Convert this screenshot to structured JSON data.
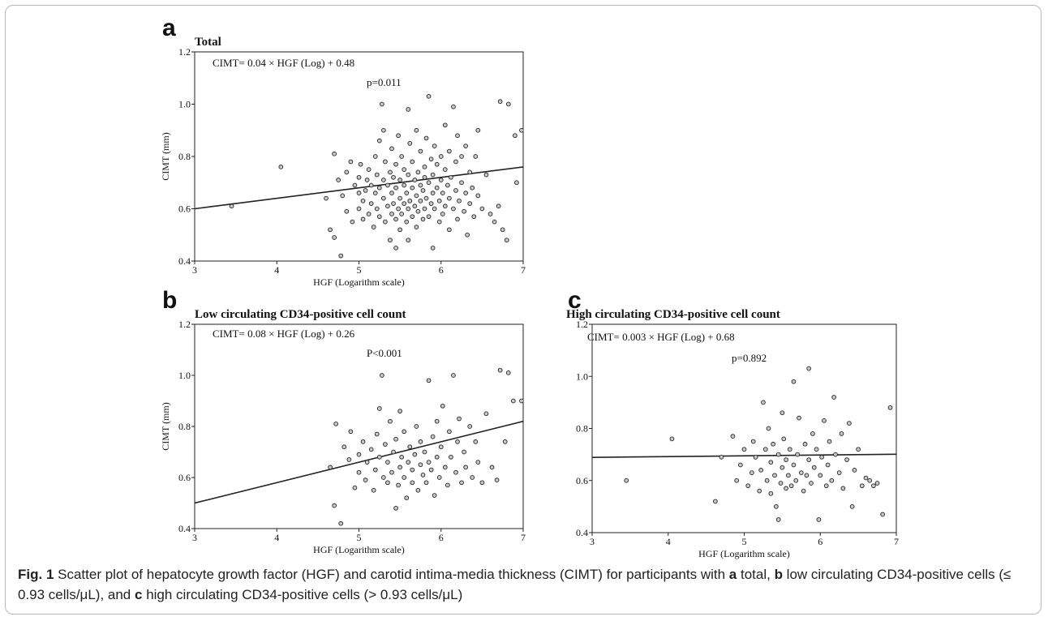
{
  "figure": {
    "caption": {
      "fig_label": "Fig. 1",
      "parts": [
        {
          "text": " Scatter plot of hepatocyte growth factor (HGF) and carotid intima-media thickness (CIMT) for participants with ",
          "bold": false
        },
        {
          "text": "a",
          "bold": true
        },
        {
          "text": " total, ",
          "bold": false
        },
        {
          "text": "b",
          "bold": true
        },
        {
          "text": " low circulating CD34-positive cells (≤ 0.93 cells/μL), and ",
          "bold": false
        },
        {
          "text": "c",
          "bold": true
        },
        {
          "text": " high circulating CD34-positive cells (> 0.93 cells/μL)",
          "bold": false
        }
      ]
    }
  },
  "chart_data": [
    {
      "panel": "a",
      "type": "scatter",
      "title": "Total",
      "xlabel": "HGF  (Logarithm  scale)",
      "ylabel": "CIMT  (mm)",
      "xlim": [
        3,
        7
      ],
      "ylim": [
        0.4,
        1.2
      ],
      "xticks": [
        3,
        4,
        5,
        6,
        7
      ],
      "yticks": [
        0.4,
        0.6,
        0.8,
        1.0,
        1.2
      ],
      "ytick_labels": [
        "0.4",
        "0.6",
        "0.8",
        "1.0",
        "1.2"
      ],
      "equation": "CIMT= 0.04 × HGF (Log) + 0.48",
      "pvalue": "p=0.011",
      "regression": {
        "slope": 0.04,
        "intercept": 0.48
      },
      "grid": false,
      "points": [
        [
          3.45,
          0.61
        ],
        [
          4.05,
          0.76
        ],
        [
          4.6,
          0.64
        ],
        [
          4.65,
          0.52
        ],
        [
          4.7,
          0.49
        ],
        [
          4.7,
          0.81
        ],
        [
          4.75,
          0.71
        ],
        [
          4.78,
          0.42
        ],
        [
          4.8,
          0.65
        ],
        [
          4.85,
          0.59
        ],
        [
          4.85,
          0.74
        ],
        [
          4.9,
          0.78
        ],
        [
          4.92,
          0.55
        ],
        [
          4.95,
          0.69
        ],
        [
          5.0,
          0.6
        ],
        [
          5.0,
          0.66
        ],
        [
          5.0,
          0.72
        ],
        [
          5.02,
          0.77
        ],
        [
          5.05,
          0.56
        ],
        [
          5.05,
          0.63
        ],
        [
          5.08,
          0.67
        ],
        [
          5.1,
          0.71
        ],
        [
          5.12,
          0.58
        ],
        [
          5.12,
          0.75
        ],
        [
          5.15,
          0.62
        ],
        [
          5.15,
          0.69
        ],
        [
          5.18,
          0.53
        ],
        [
          5.2,
          0.66
        ],
        [
          5.2,
          0.8
        ],
        [
          5.22,
          0.6
        ],
        [
          5.22,
          0.73
        ],
        [
          5.25,
          0.57
        ],
        [
          5.25,
          0.68
        ],
        [
          5.25,
          0.86
        ],
        [
          5.28,
          1.0
        ],
        [
          5.3,
          0.64
        ],
        [
          5.3,
          0.71
        ],
        [
          5.3,
          0.9
        ],
        [
          5.32,
          0.55
        ],
        [
          5.32,
          0.78
        ],
        [
          5.35,
          0.61
        ],
        [
          5.35,
          0.69
        ],
        [
          5.38,
          0.48
        ],
        [
          5.38,
          0.74
        ],
        [
          5.4,
          0.58
        ],
        [
          5.4,
          0.66
        ],
        [
          5.4,
          0.83
        ],
        [
          5.42,
          0.62
        ],
        [
          5.42,
          0.72
        ],
        [
          5.45,
          0.45
        ],
        [
          5.45,
          0.56
        ],
        [
          5.45,
          0.68
        ],
        [
          5.45,
          0.77
        ],
        [
          5.48,
          0.6
        ],
        [
          5.48,
          0.88
        ],
        [
          5.5,
          0.52
        ],
        [
          5.5,
          0.64
        ],
        [
          5.5,
          0.71
        ],
        [
          5.52,
          0.58
        ],
        [
          5.52,
          0.8
        ],
        [
          5.55,
          0.62
        ],
        [
          5.55,
          0.69
        ],
        [
          5.55,
          0.75
        ],
        [
          5.58,
          0.55
        ],
        [
          5.58,
          0.66
        ],
        [
          5.6,
          0.48
        ],
        [
          5.6,
          0.6
        ],
        [
          5.6,
          0.73
        ],
        [
          5.6,
          0.98
        ],
        [
          5.62,
          0.63
        ],
        [
          5.62,
          0.85
        ],
        [
          5.65,
          0.57
        ],
        [
          5.65,
          0.68
        ],
        [
          5.65,
          0.78
        ],
        [
          5.68,
          0.61
        ],
        [
          5.68,
          0.71
        ],
        [
          5.7,
          0.53
        ],
        [
          5.7,
          0.65
        ],
        [
          5.7,
          0.9
        ],
        [
          5.72,
          0.59
        ],
        [
          5.72,
          0.74
        ],
        [
          5.75,
          0.63
        ],
        [
          5.75,
          0.69
        ],
        [
          5.75,
          0.82
        ],
        [
          5.78,
          0.56
        ],
        [
          5.78,
          0.67
        ],
        [
          5.8,
          0.6
        ],
        [
          5.8,
          0.72
        ],
        [
          5.8,
          0.76
        ],
        [
          5.82,
          0.64
        ],
        [
          5.82,
          0.87
        ],
        [
          5.85,
          0.57
        ],
        [
          5.85,
          0.7
        ],
        [
          5.85,
          1.03
        ],
        [
          5.88,
          0.62
        ],
        [
          5.88,
          0.79
        ],
        [
          5.9,
          0.45
        ],
        [
          5.9,
          0.66
        ],
        [
          5.9,
          0.73
        ],
        [
          5.92,
          0.6
        ],
        [
          5.92,
          0.84
        ],
        [
          5.95,
          0.68
        ],
        [
          5.95,
          0.77
        ],
        [
          5.98,
          0.55
        ],
        [
          5.98,
          0.63
        ],
        [
          6.0,
          0.71
        ],
        [
          6.0,
          0.8
        ],
        [
          6.02,
          0.58
        ],
        [
          6.02,
          0.66
        ],
        [
          6.05,
          0.61
        ],
        [
          6.05,
          0.75
        ],
        [
          6.05,
          0.92
        ],
        [
          6.08,
          0.69
        ],
        [
          6.1,
          0.52
        ],
        [
          6.1,
          0.64
        ],
        [
          6.1,
          0.82
        ],
        [
          6.12,
          0.72
        ],
        [
          6.15,
          0.6
        ],
        [
          6.15,
          0.99
        ],
        [
          6.18,
          0.67
        ],
        [
          6.18,
          0.78
        ],
        [
          6.2,
          0.56
        ],
        [
          6.2,
          0.88
        ],
        [
          6.22,
          0.63
        ],
        [
          6.25,
          0.7
        ],
        [
          6.25,
          0.8
        ],
        [
          6.28,
          0.59
        ],
        [
          6.3,
          0.66
        ],
        [
          6.3,
          0.84
        ],
        [
          6.32,
          0.5
        ],
        [
          6.35,
          0.62
        ],
        [
          6.35,
          0.74
        ],
        [
          6.38,
          0.68
        ],
        [
          6.4,
          0.57
        ],
        [
          6.42,
          0.8
        ],
        [
          6.45,
          0.65
        ],
        [
          6.45,
          0.9
        ],
        [
          6.5,
          0.6
        ],
        [
          6.55,
          0.73
        ],
        [
          6.6,
          0.58
        ],
        [
          6.65,
          0.55
        ],
        [
          6.7,
          0.61
        ],
        [
          6.72,
          1.01
        ],
        [
          6.75,
          0.52
        ],
        [
          6.8,
          0.48
        ],
        [
          6.82,
          1.0
        ],
        [
          6.9,
          0.88
        ],
        [
          6.92,
          0.7
        ],
        [
          6.98,
          0.9
        ]
      ]
    },
    {
      "panel": "b",
      "type": "scatter",
      "title": "Low circulating CD34-positive cell count",
      "xlabel": "HGF  (Logarithm  scale)",
      "ylabel": "CIMT  (mm)",
      "xlim": [
        3,
        7
      ],
      "ylim": [
        0.4,
        1.2
      ],
      "xticks": [
        3,
        4,
        5,
        6,
        7
      ],
      "yticks": [
        0.4,
        0.6,
        0.8,
        1.0,
        1.2
      ],
      "ytick_labels": [
        "0.4",
        "0.6",
        "0.8",
        "1.0",
        "1.2"
      ],
      "equation": "CIMT= 0.08 × HGF (Log) + 0.26",
      "pvalue": "P<0.001",
      "regression": {
        "slope": 0.08,
        "intercept": 0.26
      },
      "grid": false,
      "points": [
        [
          4.65,
          0.64
        ],
        [
          4.7,
          0.49
        ],
        [
          4.72,
          0.81
        ],
        [
          4.78,
          0.42
        ],
        [
          4.82,
          0.72
        ],
        [
          4.88,
          0.67
        ],
        [
          4.9,
          0.78
        ],
        [
          4.95,
          0.56
        ],
        [
          5.0,
          0.62
        ],
        [
          5.0,
          0.69
        ],
        [
          5.05,
          0.74
        ],
        [
          5.08,
          0.59
        ],
        [
          5.1,
          0.66
        ],
        [
          5.15,
          0.71
        ],
        [
          5.18,
          0.55
        ],
        [
          5.2,
          0.63
        ],
        [
          5.22,
          0.77
        ],
        [
          5.25,
          0.68
        ],
        [
          5.25,
          0.87
        ],
        [
          5.28,
          1.0
        ],
        [
          5.3,
          0.6
        ],
        [
          5.32,
          0.73
        ],
        [
          5.35,
          0.58
        ],
        [
          5.35,
          0.66
        ],
        [
          5.38,
          0.82
        ],
        [
          5.4,
          0.62
        ],
        [
          5.42,
          0.7
        ],
        [
          5.45,
          0.48
        ],
        [
          5.45,
          0.75
        ],
        [
          5.48,
          0.57
        ],
        [
          5.5,
          0.64
        ],
        [
          5.5,
          0.86
        ],
        [
          5.52,
          0.68
        ],
        [
          5.55,
          0.6
        ],
        [
          5.55,
          0.78
        ],
        [
          5.58,
          0.52
        ],
        [
          5.6,
          0.66
        ],
        [
          5.62,
          0.72
        ],
        [
          5.65,
          0.58
        ],
        [
          5.65,
          0.63
        ],
        [
          5.68,
          0.69
        ],
        [
          5.7,
          0.8
        ],
        [
          5.72,
          0.55
        ],
        [
          5.75,
          0.65
        ],
        [
          5.75,
          0.74
        ],
        [
          5.78,
          0.61
        ],
        [
          5.8,
          0.7
        ],
        [
          5.82,
          0.58
        ],
        [
          5.85,
          0.98
        ],
        [
          5.85,
          0.66
        ],
        [
          5.88,
          0.63
        ],
        [
          5.9,
          0.76
        ],
        [
          5.92,
          0.53
        ],
        [
          5.95,
          0.68
        ],
        [
          5.95,
          0.82
        ],
        [
          5.98,
          0.6
        ],
        [
          6.0,
          0.72
        ],
        [
          6.02,
          0.88
        ],
        [
          6.05,
          0.64
        ],
        [
          6.08,
          0.57
        ],
        [
          6.1,
          0.78
        ],
        [
          6.12,
          0.68
        ],
        [
          6.15,
          1.0
        ],
        [
          6.18,
          0.62
        ],
        [
          6.2,
          0.74
        ],
        [
          6.22,
          0.83
        ],
        [
          6.25,
          0.58
        ],
        [
          6.28,
          0.7
        ],
        [
          6.3,
          0.64
        ],
        [
          6.35,
          0.8
        ],
        [
          6.38,
          0.6
        ],
        [
          6.42,
          0.74
        ],
        [
          6.45,
          0.66
        ],
        [
          6.5,
          0.58
        ],
        [
          6.55,
          0.85
        ],
        [
          6.62,
          0.64
        ],
        [
          6.68,
          0.59
        ],
        [
          6.72,
          1.02
        ],
        [
          6.78,
          0.74
        ],
        [
          6.82,
          1.01
        ],
        [
          6.88,
          0.9
        ],
        [
          6.98,
          0.9
        ]
      ]
    },
    {
      "panel": "c",
      "type": "scatter",
      "title": "High circulating CD34-positive cell count",
      "xlabel": "HGF  (Logarithm  scale)",
      "ylabel": "",
      "xlim": [
        3,
        7
      ],
      "ylim": [
        0.4,
        1.2
      ],
      "xticks": [
        3,
        4,
        5,
        6,
        7
      ],
      "yticks": [
        0.4,
        0.6,
        0.8,
        1.0,
        1.2
      ],
      "ytick_labels": [
        "0.4",
        "0.6",
        "0.8",
        "1.0",
        "1.2"
      ],
      "equation": "CIMT= 0.003 × HGF (Log) + 0.68",
      "pvalue": "p=0.892",
      "regression": {
        "slope": 0.003,
        "intercept": 0.68
      },
      "grid": false,
      "points": [
        [
          3.45,
          0.6
        ],
        [
          4.05,
          0.76
        ],
        [
          4.62,
          0.52
        ],
        [
          4.7,
          0.69
        ],
        [
          4.85,
          0.77
        ],
        [
          4.9,
          0.6
        ],
        [
          4.95,
          0.66
        ],
        [
          5.0,
          0.72
        ],
        [
          5.05,
          0.58
        ],
        [
          5.1,
          0.63
        ],
        [
          5.12,
          0.75
        ],
        [
          5.15,
          0.69
        ],
        [
          5.2,
          0.56
        ],
        [
          5.22,
          0.64
        ],
        [
          5.25,
          0.9
        ],
        [
          5.28,
          0.72
        ],
        [
          5.3,
          0.6
        ],
        [
          5.32,
          0.8
        ],
        [
          5.35,
          0.55
        ],
        [
          5.35,
          0.67
        ],
        [
          5.38,
          0.74
        ],
        [
          5.4,
          0.62
        ],
        [
          5.42,
          0.5
        ],
        [
          5.45,
          0.45
        ],
        [
          5.45,
          0.7
        ],
        [
          5.48,
          0.59
        ],
        [
          5.5,
          0.65
        ],
        [
          5.5,
          0.86
        ],
        [
          5.52,
          0.76
        ],
        [
          5.55,
          0.57
        ],
        [
          5.55,
          0.68
        ],
        [
          5.58,
          0.62
        ],
        [
          5.6,
          0.72
        ],
        [
          5.62,
          0.58
        ],
        [
          5.65,
          0.98
        ],
        [
          5.65,
          0.66
        ],
        [
          5.68,
          0.6
        ],
        [
          5.7,
          0.7
        ],
        [
          5.72,
          0.84
        ],
        [
          5.75,
          0.63
        ],
        [
          5.78,
          0.56
        ],
        [
          5.8,
          0.74
        ],
        [
          5.82,
          0.62
        ],
        [
          5.85,
          0.68
        ],
        [
          5.85,
          1.03
        ],
        [
          5.88,
          0.59
        ],
        [
          5.9,
          0.78
        ],
        [
          5.92,
          0.65
        ],
        [
          5.95,
          0.72
        ],
        [
          5.98,
          0.45
        ],
        [
          6.0,
          0.62
        ],
        [
          6.02,
          0.69
        ],
        [
          6.05,
          0.83
        ],
        [
          6.08,
          0.58
        ],
        [
          6.1,
          0.66
        ],
        [
          6.12,
          0.75
        ],
        [
          6.15,
          0.6
        ],
        [
          6.18,
          0.92
        ],
        [
          6.2,
          0.7
        ],
        [
          6.25,
          0.63
        ],
        [
          6.28,
          0.78
        ],
        [
          6.3,
          0.57
        ],
        [
          6.35,
          0.68
        ],
        [
          6.38,
          0.82
        ],
        [
          6.42,
          0.5
        ],
        [
          6.45,
          0.64
        ],
        [
          6.5,
          0.72
        ],
        [
          6.55,
          0.58
        ],
        [
          6.6,
          0.61
        ],
        [
          6.65,
          0.6
        ],
        [
          6.7,
          0.58
        ],
        [
          6.75,
          0.59
        ],
        [
          6.82,
          0.47
        ],
        [
          6.92,
          0.88
        ]
      ]
    }
  ]
}
